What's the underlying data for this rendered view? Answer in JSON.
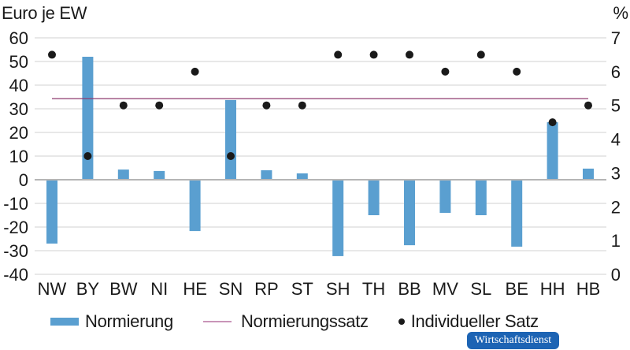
{
  "chart_data": {
    "type": "bar",
    "title": "",
    "xlabel": "",
    "ylabel": "Euro je EW",
    "ylabel_right": "%",
    "ylim": [
      -40,
      60
    ],
    "ylim_right": [
      0,
      7
    ],
    "yticks": [
      60,
      50,
      40,
      30,
      20,
      10,
      0,
      -10,
      -20,
      -30,
      -40
    ],
    "yticks_right": [
      7,
      6,
      5,
      4,
      3,
      2,
      1,
      0
    ],
    "grid": true,
    "legend_position": "bottom",
    "categories": [
      "NW",
      "BY",
      "BW",
      "NI",
      "HE",
      "SN",
      "RP",
      "ST",
      "SH",
      "TH",
      "BB",
      "MV",
      "SL",
      "BE",
      "HH",
      "HB"
    ],
    "series": [
      {
        "name": "Normierung",
        "type": "bar",
        "axis": "left",
        "color": "#5a9fd0",
        "values": [
          -27,
          52,
          4.3,
          3.7,
          -21.7,
          33.7,
          4,
          2.7,
          -32.3,
          -15,
          -27.7,
          -14,
          -15,
          -28.3,
          24.3,
          4.7
        ]
      },
      {
        "name": "Normierungssatz",
        "type": "line",
        "axis": "right",
        "color": "#8e3a6e",
        "value": 5.2
      },
      {
        "name": "Individueller Satz",
        "type": "scatter",
        "axis": "right",
        "color": "#1a1a1a",
        "values": [
          6.5,
          3.5,
          5.0,
          5.0,
          6.0,
          3.5,
          5.0,
          5.0,
          6.5,
          6.5,
          6.5,
          6.0,
          6.5,
          6.0,
          4.5,
          5.0
        ]
      }
    ]
  },
  "labels": {
    "y_left_title": "Euro je EW",
    "y_right_title": "%"
  },
  "legend": {
    "bar_label": "Normierung",
    "line_label": "Normierungssatz",
    "dot_label": "Individueller Satz"
  },
  "footer": {
    "badge": "Wirtschaftsdienst"
  }
}
